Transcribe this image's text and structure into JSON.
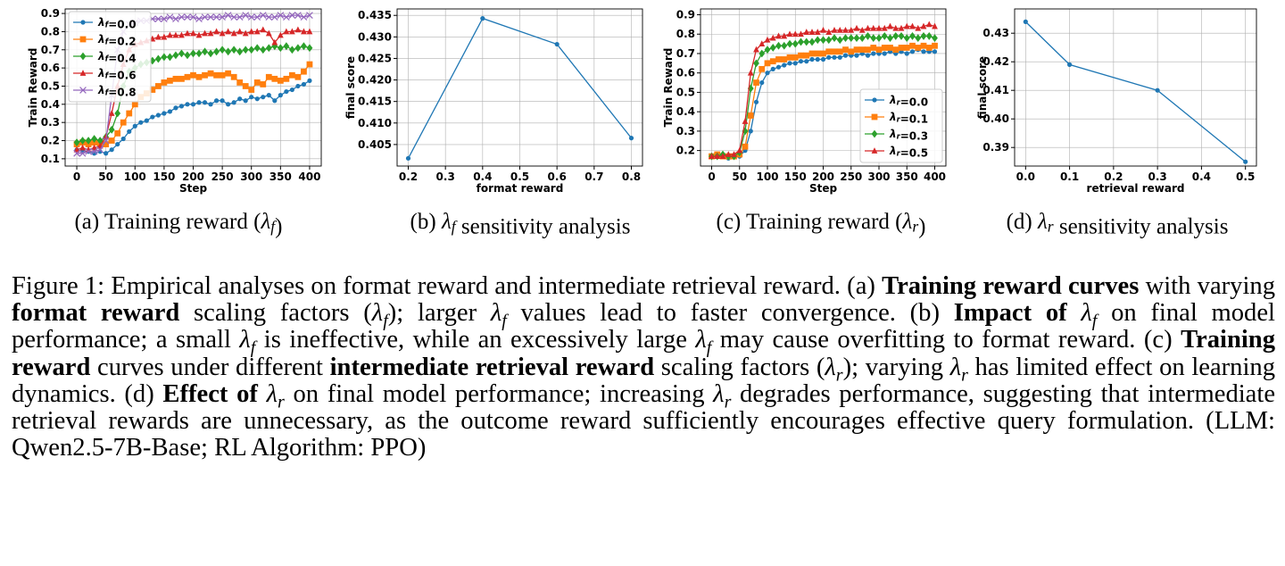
{
  "chart_data": [
    {
      "type": "line",
      "ylabel": "Train Reward",
      "xlabel": "Step",
      "caption": "(a) Training reward (λf)",
      "x": [
        0,
        10,
        20,
        30,
        40,
        50,
        60,
        70,
        80,
        90,
        100,
        110,
        120,
        130,
        140,
        150,
        160,
        170,
        180,
        190,
        200,
        210,
        220,
        230,
        240,
        250,
        260,
        270,
        280,
        290,
        300,
        310,
        320,
        330,
        340,
        350,
        360,
        370,
        380,
        390,
        400
      ],
      "series": [
        {
          "name": "λf=0.0",
          "color": "#1f77b4",
          "marker": "o",
          "values": [
            0.15,
            0.14,
            0.14,
            0.13,
            0.14,
            0.13,
            0.15,
            0.18,
            0.21,
            0.25,
            0.28,
            0.3,
            0.31,
            0.33,
            0.34,
            0.35,
            0.36,
            0.38,
            0.39,
            0.4,
            0.4,
            0.41,
            0.41,
            0.4,
            0.42,
            0.42,
            0.4,
            0.41,
            0.43,
            0.42,
            0.44,
            0.43,
            0.44,
            0.45,
            0.42,
            0.45,
            0.47,
            0.48,
            0.5,
            0.51,
            0.53
          ]
        },
        {
          "name": "λf=0.2",
          "color": "#ff7f0e",
          "marker": "s",
          "values": [
            0.18,
            0.19,
            0.18,
            0.19,
            0.18,
            0.18,
            0.2,
            0.24,
            0.3,
            0.35,
            0.4,
            0.44,
            0.46,
            0.48,
            0.5,
            0.52,
            0.53,
            0.54,
            0.54,
            0.55,
            0.56,
            0.55,
            0.56,
            0.57,
            0.56,
            0.56,
            0.57,
            0.55,
            0.52,
            0.5,
            0.48,
            0.52,
            0.51,
            0.55,
            0.54,
            0.53,
            0.54,
            0.56,
            0.55,
            0.58,
            0.62
          ]
        },
        {
          "name": "λf=0.4",
          "color": "#2ca02c",
          "marker": "D",
          "values": [
            0.19,
            0.2,
            0.2,
            0.21,
            0.2,
            0.22,
            0.26,
            0.35,
            0.5,
            0.58,
            0.6,
            0.62,
            0.63,
            0.64,
            0.65,
            0.66,
            0.66,
            0.67,
            0.68,
            0.67,
            0.68,
            0.68,
            0.69,
            0.68,
            0.69,
            0.7,
            0.69,
            0.7,
            0.69,
            0.7,
            0.7,
            0.71,
            0.7,
            0.71,
            0.72,
            0.71,
            0.72,
            0.7,
            0.71,
            0.72,
            0.71
          ]
        },
        {
          "name": "λf=0.6",
          "color": "#d62728",
          "marker": "^",
          "values": [
            0.15,
            0.16,
            0.15,
            0.16,
            0.17,
            0.22,
            0.35,
            0.5,
            0.62,
            0.7,
            0.73,
            0.74,
            0.75,
            0.76,
            0.77,
            0.77,
            0.78,
            0.78,
            0.78,
            0.79,
            0.79,
            0.78,
            0.79,
            0.79,
            0.8,
            0.79,
            0.8,
            0.79,
            0.8,
            0.79,
            0.8,
            0.8,
            0.81,
            0.79,
            0.74,
            0.78,
            0.8,
            0.8,
            0.81,
            0.8,
            0.8
          ]
        },
        {
          "name": "λf=0.8",
          "color": "#9467bd",
          "marker": "x",
          "values": [
            0.13,
            0.13,
            0.14,
            0.14,
            0.15,
            0.2,
            0.45,
            0.7,
            0.8,
            0.84,
            0.85,
            0.86,
            0.86,
            0.87,
            0.87,
            0.87,
            0.88,
            0.87,
            0.88,
            0.88,
            0.88,
            0.87,
            0.88,
            0.88,
            0.88,
            0.88,
            0.89,
            0.88,
            0.88,
            0.89,
            0.88,
            0.88,
            0.89,
            0.88,
            0.88,
            0.89,
            0.88,
            0.89,
            0.89,
            0.88,
            0.89
          ]
        }
      ],
      "xlim": [
        -20,
        420
      ],
      "xticks": [
        0,
        50,
        100,
        150,
        200,
        250,
        300,
        350,
        400
      ],
      "ylim": [
        0.06,
        0.925
      ],
      "yticks": [
        0.1,
        0.2,
        0.3,
        0.4,
        0.5,
        0.6,
        0.7,
        0.8,
        0.9
      ],
      "grid": true,
      "legend": "upper left"
    },
    {
      "type": "line",
      "ylabel": "final score",
      "xlabel": "format reward",
      "caption": "(b) λf sensitivity analysis",
      "x": [
        0.2,
        0.4,
        0.6,
        0.8
      ],
      "series": [
        {
          "color": "#1f77b4",
          "marker": "o",
          "values": [
            0.4018,
            0.4343,
            0.4283,
            0.4065
          ]
        }
      ],
      "xlim": [
        0.17,
        0.83
      ],
      "xticks": [
        0.2,
        0.3,
        0.4,
        0.5,
        0.6,
        0.7,
        0.8
      ],
      "ylim": [
        0.4,
        0.4365
      ],
      "yticks": [
        0.405,
        {
          "value": 0.41,
          "label": "0.410"
        },
        0.415,
        {
          "value": 0.42,
          "label": "0.420"
        },
        0.425,
        {
          "value": 0.43,
          "label": "0.430"
        },
        0.435
      ],
      "grid": true
    },
    {
      "type": "line",
      "ylabel": "Train Reward",
      "xlabel": "Step",
      "caption": "(c) Training reward (λr)",
      "x": [
        0,
        10,
        20,
        30,
        40,
        50,
        60,
        70,
        80,
        90,
        100,
        110,
        120,
        130,
        140,
        150,
        160,
        170,
        180,
        190,
        200,
        210,
        220,
        230,
        240,
        250,
        260,
        270,
        280,
        290,
        300,
        310,
        320,
        330,
        340,
        350,
        360,
        370,
        380,
        390,
        400
      ],
      "series": [
        {
          "name": "λr=0.0",
          "color": "#1f77b4",
          "marker": "o",
          "values": [
            0.17,
            0.17,
            0.17,
            0.16,
            0.17,
            0.17,
            0.2,
            0.3,
            0.45,
            0.55,
            0.6,
            0.62,
            0.63,
            0.64,
            0.65,
            0.65,
            0.66,
            0.66,
            0.67,
            0.67,
            0.67,
            0.68,
            0.68,
            0.68,
            0.69,
            0.69,
            0.69,
            0.7,
            0.69,
            0.7,
            0.7,
            0.7,
            0.71,
            0.7,
            0.71,
            0.7,
            0.71,
            0.72,
            0.71,
            0.71,
            0.71
          ]
        },
        {
          "name": "λr=0.1",
          "color": "#ff7f0e",
          "marker": "s",
          "values": [
            0.17,
            0.18,
            0.17,
            0.17,
            0.17,
            0.18,
            0.22,
            0.38,
            0.55,
            0.62,
            0.65,
            0.66,
            0.67,
            0.67,
            0.68,
            0.68,
            0.69,
            0.69,
            0.7,
            0.7,
            0.7,
            0.71,
            0.71,
            0.71,
            0.72,
            0.71,
            0.72,
            0.72,
            0.72,
            0.73,
            0.72,
            0.73,
            0.73,
            0.72,
            0.73,
            0.73,
            0.74,
            0.73,
            0.74,
            0.73,
            0.74
          ]
        },
        {
          "name": "λr=0.3",
          "color": "#2ca02c",
          "marker": "D",
          "values": [
            0.17,
            0.17,
            0.18,
            0.17,
            0.17,
            0.19,
            0.3,
            0.52,
            0.65,
            0.7,
            0.72,
            0.73,
            0.74,
            0.74,
            0.75,
            0.75,
            0.76,
            0.76,
            0.76,
            0.77,
            0.77,
            0.77,
            0.78,
            0.77,
            0.78,
            0.78,
            0.78,
            0.78,
            0.79,
            0.78,
            0.78,
            0.79,
            0.78,
            0.79,
            0.79,
            0.78,
            0.79,
            0.78,
            0.79,
            0.79,
            0.78
          ]
        },
        {
          "name": "λr=0.5",
          "color": "#d62728",
          "marker": "^",
          "values": [
            0.17,
            0.17,
            0.17,
            0.18,
            0.18,
            0.2,
            0.35,
            0.6,
            0.72,
            0.75,
            0.77,
            0.78,
            0.79,
            0.79,
            0.8,
            0.8,
            0.8,
            0.81,
            0.81,
            0.81,
            0.82,
            0.81,
            0.82,
            0.82,
            0.82,
            0.82,
            0.83,
            0.82,
            0.83,
            0.83,
            0.83,
            0.83,
            0.84,
            0.83,
            0.83,
            0.84,
            0.84,
            0.83,
            0.84,
            0.85,
            0.84
          ]
        }
      ],
      "xlim": [
        -20,
        420
      ],
      "xticks": [
        0,
        50,
        100,
        150,
        200,
        250,
        300,
        350,
        400
      ],
      "ylim": [
        0.12,
        0.93
      ],
      "yticks": [
        0.2,
        0.3,
        0.4,
        0.5,
        0.6,
        0.7,
        0.8,
        0.9
      ],
      "grid": true,
      "legend": "lower right"
    },
    {
      "type": "line",
      "ylabel": "final score",
      "xlabel": "retrieval reward",
      "caption": "(d) λr sensitivity analysis",
      "x": [
        0.0,
        0.1,
        0.3,
        0.5
      ],
      "series": [
        {
          "color": "#1f77b4",
          "marker": "o",
          "values": [
            0.434,
            0.419,
            0.41,
            0.385
          ]
        }
      ],
      "xlim": [
        -0.025,
        0.525
      ],
      "xticks": [
        {
          "value": 0,
          "label": "0.0"
        },
        0.1,
        0.2,
        0.3,
        0.4,
        0.5
      ],
      "ylim": [
        0.3835,
        0.4385
      ],
      "yticks": [
        0.39,
        {
          "value": 0.4,
          "label": "0.40"
        },
        0.41,
        0.42,
        0.43
      ],
      "grid": true
    }
  ],
  "figure_caption": {
    "runs": [
      {
        "text": "Figure 1: Empirical analyses on format reward and intermediate retrieval reward. (a) "
      },
      {
        "text": "Training reward curves",
        "bold": true
      },
      {
        "text": " with varying "
      },
      {
        "text": "format reward",
        "bold": true
      },
      {
        "text": " scaling factors (λf); larger λf values lead to faster convergence. (b) "
      },
      {
        "text": "Impact of",
        "bold": true
      },
      {
        "text": " λf on final model performance; a small λf is ineffective, while an excessively large λf may cause overfitting to format reward. (c) "
      },
      {
        "text": "Training reward",
        "bold": true
      },
      {
        "text": " curves under different "
      },
      {
        "text": "intermediate retrieval reward",
        "bold": true
      },
      {
        "text": " scaling factors (λr); varying λr has limited effect on learning dynamics. (d) "
      },
      {
        "text": "Effect of",
        "bold": true
      },
      {
        "text": " λr on final model performance; increasing λr degrades performance, suggesting that intermediate retrieval rewards are unnecessary, as the outcome reward sufficiently encourages effective query formulation. (LLM: Qwen2.5-7B-Base; RL Algorithm: PPO)"
      }
    ]
  }
}
